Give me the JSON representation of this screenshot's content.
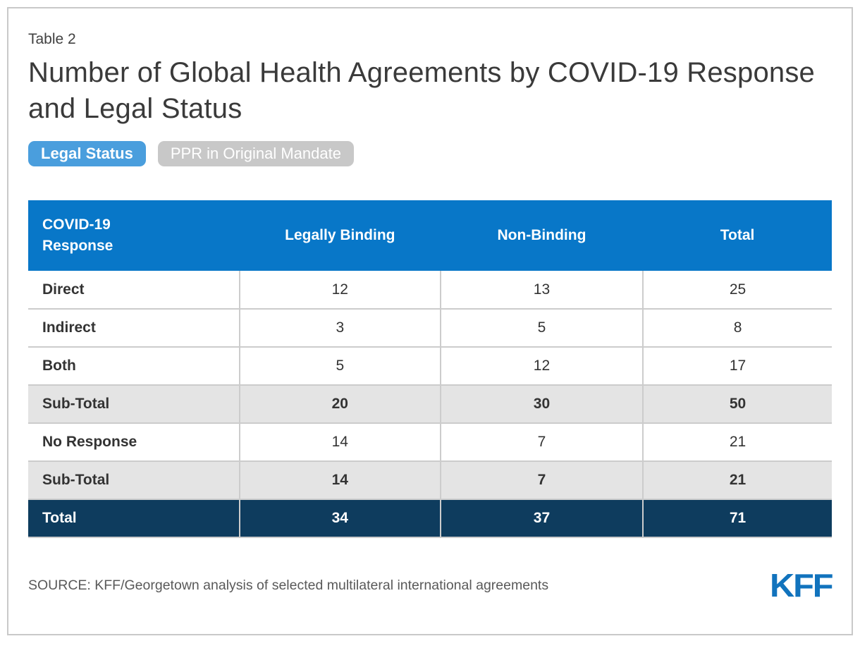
{
  "header": {
    "table_label": "Table 2",
    "title": "Number of Global Health Agreements by COVID-19 Response and Legal Status"
  },
  "tabs": [
    {
      "label": "Legal Status",
      "active": true
    },
    {
      "label": "PPR in Original Mandate",
      "active": false
    }
  ],
  "chart_data": {
    "type": "table",
    "title": "Number of Global Health Agreements by COVID-19 Response and Legal Status",
    "columns": [
      "COVID-19 Response",
      "Legally Binding",
      "Non-Binding",
      "Total"
    ],
    "rows": [
      {
        "label": "Direct",
        "values": [
          12,
          13,
          25
        ],
        "style": "normal"
      },
      {
        "label": "Indirect",
        "values": [
          3,
          5,
          8
        ],
        "style": "normal"
      },
      {
        "label": "Both",
        "values": [
          5,
          12,
          17
        ],
        "style": "normal"
      },
      {
        "label": "Sub-Total",
        "values": [
          20,
          30,
          50
        ],
        "style": "subtotal"
      },
      {
        "label": "No Response",
        "values": [
          14,
          7,
          21
        ],
        "style": "normal"
      },
      {
        "label": "Sub-Total",
        "values": [
          14,
          7,
          21
        ],
        "style": "subtotal"
      },
      {
        "label": "Total",
        "values": [
          34,
          37,
          71
        ],
        "style": "total"
      }
    ]
  },
  "footer": {
    "source": "SOURCE: KFF/Georgetown analysis of selected multilateral international agreements",
    "logo": "KFF"
  },
  "colors": {
    "header_blue": "#0877C8",
    "header_blue_light": "#4A9EDD",
    "inactive_tab_gray": "#C8C8C8",
    "subtotal_gray": "#E4E4E4",
    "total_navy": "#0E3C5E",
    "border_gray": "#CCCCCC",
    "logo_blue": "#1173BD"
  }
}
